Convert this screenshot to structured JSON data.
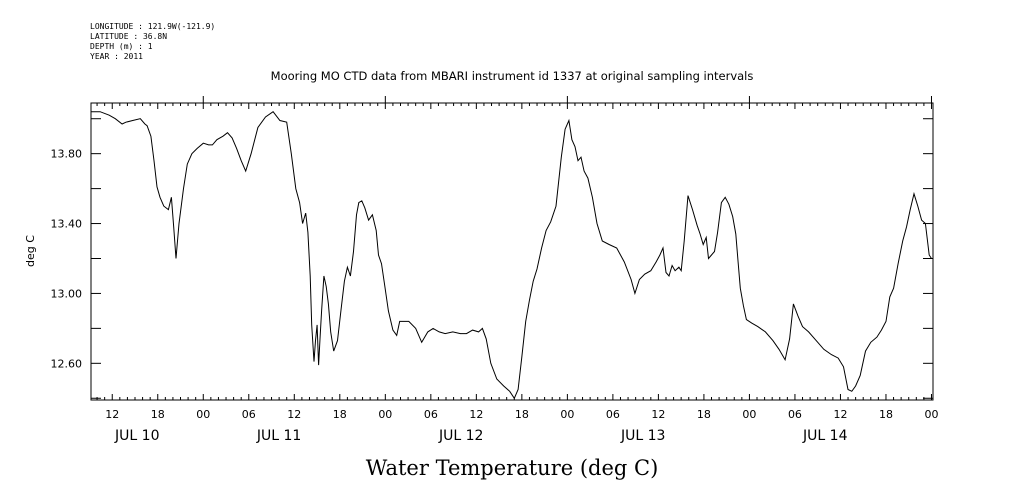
{
  "metadata": [
    "LONGITUDE : 121.9W(-121.9)",
    "LATITUDE : 36.8N",
    "DEPTH (m) : 1",
    "YEAR : 2011"
  ],
  "chart_data": {
    "type": "line",
    "title": "Mooring MO CTD data from MBARI instrument id 1337 at original sampling intervals",
    "xlabel": "Water Temperature (deg C)",
    "ylabel": "deg C",
    "x_unit": "hours",
    "xlim": [
      9.2,
      120.2
    ],
    "ylim": [
      12.39,
      14.09
    ],
    "yticks": [
      12.6,
      13.0,
      13.4,
      13.8
    ],
    "ytick_labels": [
      "12.60",
      "13.00",
      "13.40",
      "13.80"
    ],
    "hour_ticks": [
      {
        "x": 12,
        "label": "12"
      },
      {
        "x": 18,
        "label": "18"
      },
      {
        "x": 24,
        "label": "00"
      },
      {
        "x": 30,
        "label": "06"
      },
      {
        "x": 36,
        "label": "12"
      },
      {
        "x": 42,
        "label": "18"
      },
      {
        "x": 48,
        "label": "00"
      },
      {
        "x": 54,
        "label": "06"
      },
      {
        "x": 60,
        "label": "12"
      },
      {
        "x": 66,
        "label": "18"
      },
      {
        "x": 72,
        "label": "00"
      },
      {
        "x": 78,
        "label": "06"
      },
      {
        "x": 84,
        "label": "12"
      },
      {
        "x": 90,
        "label": "18"
      },
      {
        "x": 96,
        "label": "00"
      },
      {
        "x": 102,
        "label": "06"
      },
      {
        "x": 108,
        "label": "12"
      },
      {
        "x": 114,
        "label": "18"
      },
      {
        "x": 120,
        "label": "00"
      }
    ],
    "date_labels": [
      {
        "x": 15.3,
        "label": "JUL 10"
      },
      {
        "x": 34.0,
        "label": "JUL 11"
      },
      {
        "x": 58.0,
        "label": "JUL 12"
      },
      {
        "x": 82.0,
        "label": "JUL 13"
      },
      {
        "x": 106.0,
        "label": "JUL 14"
      }
    ],
    "grid": false,
    "series": [
      {
        "name": "",
        "color": "#000000",
        "x": [
          9.2,
          10.4,
          11.6,
          12.4,
          13.3,
          13.8,
          14.7,
          15.7,
          16.3,
          16.6,
          17.1,
          17.5,
          17.9,
          18.3,
          18.8,
          19.4,
          19.8,
          20.1,
          20.4,
          20.8,
          21.4,
          21.9,
          22.5,
          23.2,
          24.0,
          24.7,
          25.2,
          25.8,
          26.6,
          27.2,
          27.8,
          28.4,
          29.0,
          29.6,
          30.3,
          31.2,
          32.2,
          33.2,
          34.1,
          35.0,
          35.6,
          36.2,
          36.7,
          37.1,
          37.5,
          37.8,
          38.1,
          38.3,
          38.6,
          38.8,
          39.0,
          39.2,
          39.4,
          39.6,
          39.9,
          40.2,
          40.5,
          40.8,
          41.2,
          41.7,
          42.2,
          42.6,
          43.0,
          43.4,
          43.8,
          44.2,
          44.5,
          44.9,
          45.3,
          45.8,
          46.3,
          46.8,
          47.1,
          47.5,
          47.9,
          48.4,
          49.0,
          49.5,
          49.9,
          50.4,
          51.1,
          52.0,
          52.8,
          53.6,
          54.3,
          55.1,
          55.9,
          56.9,
          57.9,
          58.7,
          59.5,
          60.3,
          60.8,
          61.3,
          61.9,
          62.7,
          63.6,
          64.4,
          65.0,
          65.5,
          66.0,
          66.5,
          67.0,
          67.5,
          68.0,
          68.6,
          69.2,
          69.8,
          70.5,
          71.2,
          71.7,
          72.2,
          72.6,
          73.0,
          73.4,
          73.8,
          74.2,
          74.7,
          75.3,
          75.9,
          76.6,
          77.5,
          78.5,
          79.5,
          80.4,
          80.9,
          81.5,
          82.2,
          83.0,
          83.7,
          84.2,
          84.6,
          85.0,
          85.4,
          85.8,
          86.2,
          86.7,
          87.0,
          87.4,
          87.9,
          88.5,
          89.1,
          89.5,
          89.9,
          90.3,
          90.6,
          91.0,
          91.4,
          91.8,
          92.3,
          92.8,
          93.3,
          93.8,
          94.2,
          94.5,
          94.8,
          95.2,
          95.6,
          96.3,
          97.1,
          98.1,
          99.1,
          99.9,
          100.7,
          101.3,
          101.8,
          102.4,
          103.0,
          103.8,
          104.8,
          105.8,
          106.8,
          107.7,
          108.4,
          109.0,
          109.5,
          110.0,
          110.6,
          111.3,
          112.0,
          112.8,
          113.4,
          114.0,
          114.5,
          115.0,
          115.6,
          116.2,
          116.7,
          117.2,
          117.7,
          118.2,
          118.7,
          119.2,
          119.7,
          120.0
        ],
        "y": [
          14.04,
          14.04,
          14.02,
          14.0,
          13.97,
          13.98,
          13.99,
          14.0,
          13.97,
          13.96,
          13.9,
          13.76,
          13.61,
          13.55,
          13.5,
          13.48,
          13.55,
          13.38,
          13.2,
          13.4,
          13.6,
          13.74,
          13.8,
          13.83,
          13.86,
          13.85,
          13.85,
          13.88,
          13.9,
          13.92,
          13.89,
          13.83,
          13.76,
          13.7,
          13.8,
          13.95,
          14.01,
          14.04,
          13.99,
          13.98,
          13.8,
          13.6,
          13.52,
          13.4,
          13.46,
          13.35,
          13.1,
          12.82,
          12.61,
          12.73,
          12.82,
          12.59,
          12.75,
          12.9,
          13.1,
          13.04,
          12.94,
          12.78,
          12.67,
          12.73,
          12.92,
          13.07,
          13.15,
          13.1,
          13.24,
          13.45,
          13.52,
          13.53,
          13.49,
          13.42,
          13.45,
          13.36,
          13.22,
          13.17,
          13.05,
          12.9,
          12.79,
          12.76,
          12.84,
          12.84,
          12.84,
          12.8,
          12.72,
          12.78,
          12.8,
          12.78,
          12.77,
          12.78,
          12.77,
          12.77,
          12.79,
          12.78,
          12.8,
          12.74,
          12.6,
          12.51,
          12.47,
          12.44,
          12.4,
          12.45,
          12.64,
          12.84,
          12.96,
          13.07,
          13.14,
          13.26,
          13.36,
          13.41,
          13.5,
          13.78,
          13.94,
          13.99,
          13.88,
          13.84,
          13.76,
          13.78,
          13.7,
          13.66,
          13.55,
          13.4,
          13.3,
          13.28,
          13.26,
          13.18,
          13.08,
          13.0,
          13.08,
          13.11,
          13.13,
          13.18,
          13.22,
          13.26,
          13.12,
          13.1,
          13.16,
          13.13,
          13.15,
          13.13,
          13.3,
          13.56,
          13.48,
          13.39,
          13.34,
          13.28,
          13.32,
          13.2,
          13.22,
          13.24,
          13.35,
          13.52,
          13.55,
          13.51,
          13.44,
          13.34,
          13.18,
          13.03,
          12.93,
          12.85,
          12.83,
          12.81,
          12.78,
          12.73,
          12.68,
          12.62,
          12.74,
          12.94,
          12.87,
          12.81,
          12.78,
          12.73,
          12.68,
          12.65,
          12.63,
          12.58,
          12.45,
          12.44,
          12.47,
          12.53,
          12.67,
          12.72,
          12.75,
          12.79,
          12.84,
          12.98,
          13.03,
          13.17,
          13.3,
          13.38,
          13.48,
          13.57,
          13.5,
          13.42,
          13.4,
          13.22,
          13.2
        ]
      }
    ]
  }
}
